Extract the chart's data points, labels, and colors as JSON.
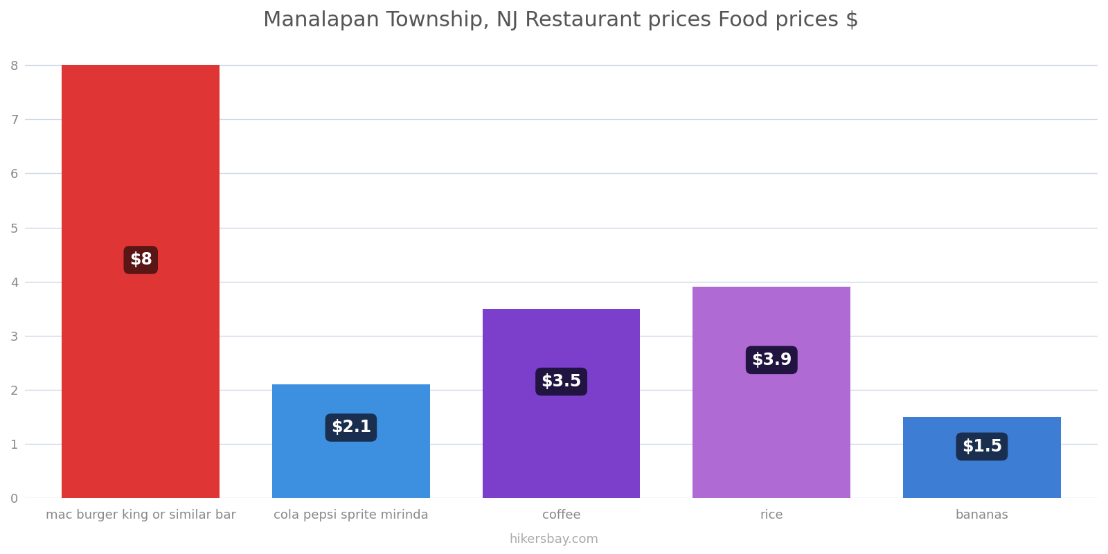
{
  "title": "Manalapan Township, NJ Restaurant prices Food prices $",
  "categories": [
    "mac burger king or similar bar",
    "cola pepsi sprite mirinda",
    "coffee",
    "rice",
    "bananas"
  ],
  "values": [
    8.0,
    2.1,
    3.5,
    3.9,
    1.5
  ],
  "bar_colors": [
    "#e03535",
    "#3d8fe0",
    "#7b3fcc",
    "#b06ad4",
    "#3d7dd4"
  ],
  "label_texts": [
    "$8",
    "$2.1",
    "$3.5",
    "$3.9",
    "$1.5"
  ],
  "label_bg_colors": [
    "#5a1515",
    "#1a2f50",
    "#221440",
    "#221440",
    "#1a2f50"
  ],
  "ylim": [
    0,
    8.4
  ],
  "yticks": [
    0,
    1,
    2,
    3,
    4,
    5,
    6,
    7,
    8
  ],
  "watermark": "hikersbay.com",
  "title_fontsize": 22,
  "tick_fontsize": 13,
  "label_fontsize": 17,
  "watermark_fontsize": 13,
  "background_color": "#ffffff",
  "grid_color": "#d0d8e8",
  "bar_width": 0.75,
  "label_y_positions": [
    4.4,
    1.3,
    2.15,
    2.55,
    0.95
  ]
}
